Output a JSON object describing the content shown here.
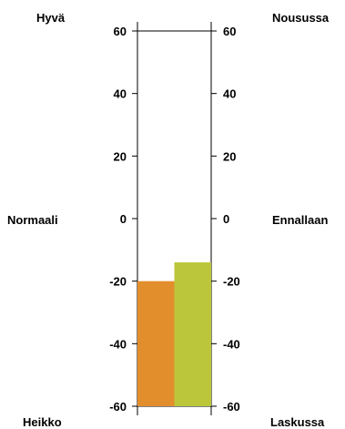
{
  "chart_data": {
    "type": "bar",
    "ylim": [
      -60,
      60
    ],
    "ticks": [
      60,
      40,
      20,
      0,
      -20,
      -40,
      -60
    ],
    "left_axis_labels": {
      "top": "Hyvä",
      "middle": "Normaali",
      "bottom": "Heikko"
    },
    "right_axis_labels": {
      "top": "Nousussa",
      "middle": "Ennallaan",
      "bottom": "Laskussa"
    },
    "bars": [
      {
        "value": -20,
        "color": "#E38E2C"
      },
      {
        "value": -14,
        "color": "#BCC63A"
      }
    ]
  }
}
